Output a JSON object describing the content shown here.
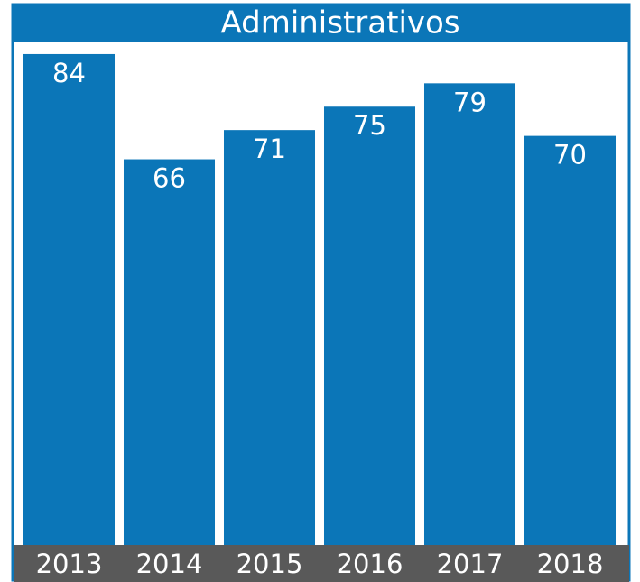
{
  "chart_data": {
    "type": "bar",
    "title": "Administrativos",
    "categories": [
      "2013",
      "2014",
      "2015",
      "2016",
      "2017",
      "2018"
    ],
    "values": [
      84,
      66,
      71,
      75,
      79,
      70
    ],
    "color": "#0b76b8",
    "ylim": [
      0,
      86
    ]
  }
}
